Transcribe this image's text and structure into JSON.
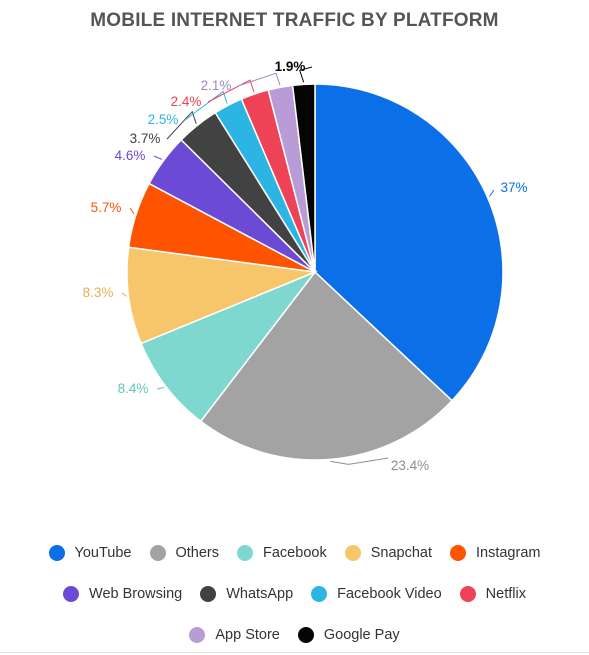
{
  "chart_data": {
    "type": "pie",
    "title": "MOBILE INTERNET TRAFFIC BY PLATFORM",
    "slices": [
      {
        "label": "YouTube",
        "value": 37,
        "value_label": "37%",
        "color": "#0b6fe8"
      },
      {
        "label": "Others",
        "value": 23.4,
        "value_label": "23.4%",
        "color": "#a3a3a3"
      },
      {
        "label": "Facebook",
        "value": 8.4,
        "value_label": "8.4%",
        "color": "#7fd8d0"
      },
      {
        "label": "Snapchat",
        "value": 8.3,
        "value_label": "8.3%",
        "color": "#f7c56a"
      },
      {
        "label": "Instagram",
        "value": 5.7,
        "value_label": "5.7%",
        "color": "#fe5400"
      },
      {
        "label": "Web Browsing",
        "value": 4.6,
        "value_label": "4.6%",
        "color": "#6c4ad6"
      },
      {
        "label": "WhatsApp",
        "value": 3.7,
        "value_label": "3.7%",
        "color": "#424242"
      },
      {
        "label": "Facebook Video",
        "value": 2.5,
        "value_label": "2.5%",
        "color": "#2cb5e3"
      },
      {
        "label": "Netflix",
        "value": 2.4,
        "value_label": "2.4%",
        "color": "#ee4356"
      },
      {
        "label": "App Store",
        "value": 2.1,
        "value_label": "2.1%",
        "color": "#b99cd5"
      },
      {
        "label": "Google Pay",
        "value": 1.9,
        "value_label": "1.9%",
        "color": "#050505"
      }
    ],
    "legend_position": "bottom",
    "legend_rows": [
      [
        "YouTube",
        "Others",
        "Facebook",
        "Snapchat",
        "Instagram"
      ],
      [
        "Web Browsing",
        "WhatsApp",
        "Facebook Video",
        "Netflix"
      ],
      [
        "App Store",
        "Google Pay"
      ]
    ]
  }
}
